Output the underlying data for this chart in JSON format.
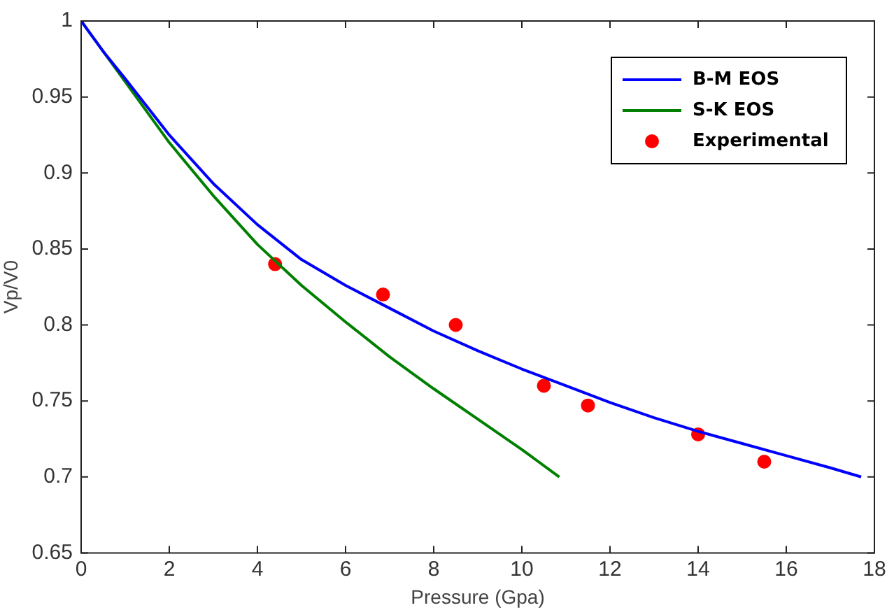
{
  "chart_data": {
    "type": "line",
    "xlabel": "Pressure (Gpa)",
    "ylabel": "Vp/V0",
    "xlim": [
      0,
      18
    ],
    "xticks": [
      0,
      2,
      4,
      6,
      8,
      10,
      12,
      14,
      16,
      18
    ],
    "ylim": [
      0.65,
      1
    ],
    "yticks": [
      0.65,
      0.7,
      0.75,
      0.8,
      0.85,
      0.9,
      0.95,
      1
    ],
    "grid": false,
    "legend": "top right",
    "series": [
      {
        "name": "B-M EOS",
        "color": "#0000ff",
        "marker": "none",
        "x": [
          0,
          0.5,
          1,
          2,
          3,
          4,
          5,
          6,
          7,
          8,
          9,
          10,
          11,
          12,
          13,
          14,
          15,
          16,
          17,
          17.7
        ],
        "values": [
          1,
          0.98,
          0.962,
          0.925,
          0.893,
          0.866,
          0.843,
          0.826,
          0.811,
          0.796,
          0.783,
          0.771,
          0.76,
          0.749,
          0.739,
          0.73,
          0.722,
          0.714,
          0.706,
          0.7
        ]
      },
      {
        "name": "S-K EOS",
        "color": "#008000",
        "marker": "none",
        "x": [
          0,
          1,
          2,
          3,
          4,
          5,
          6,
          7,
          8,
          9,
          10,
          10.85
        ],
        "values": [
          1,
          0.96,
          0.92,
          0.885,
          0.853,
          0.826,
          0.802,
          0.779,
          0.758,
          0.738,
          0.718,
          0.7
        ]
      },
      {
        "name": "Experimental",
        "type": "scatter",
        "color": "#ff0000",
        "marker": "circle",
        "x": [
          4.4,
          6.85,
          8.5,
          10.5,
          11.5,
          14,
          15.5
        ],
        "values": [
          0.84,
          0.82,
          0.8,
          0.76,
          0.747,
          0.728,
          0.71
        ]
      }
    ]
  }
}
